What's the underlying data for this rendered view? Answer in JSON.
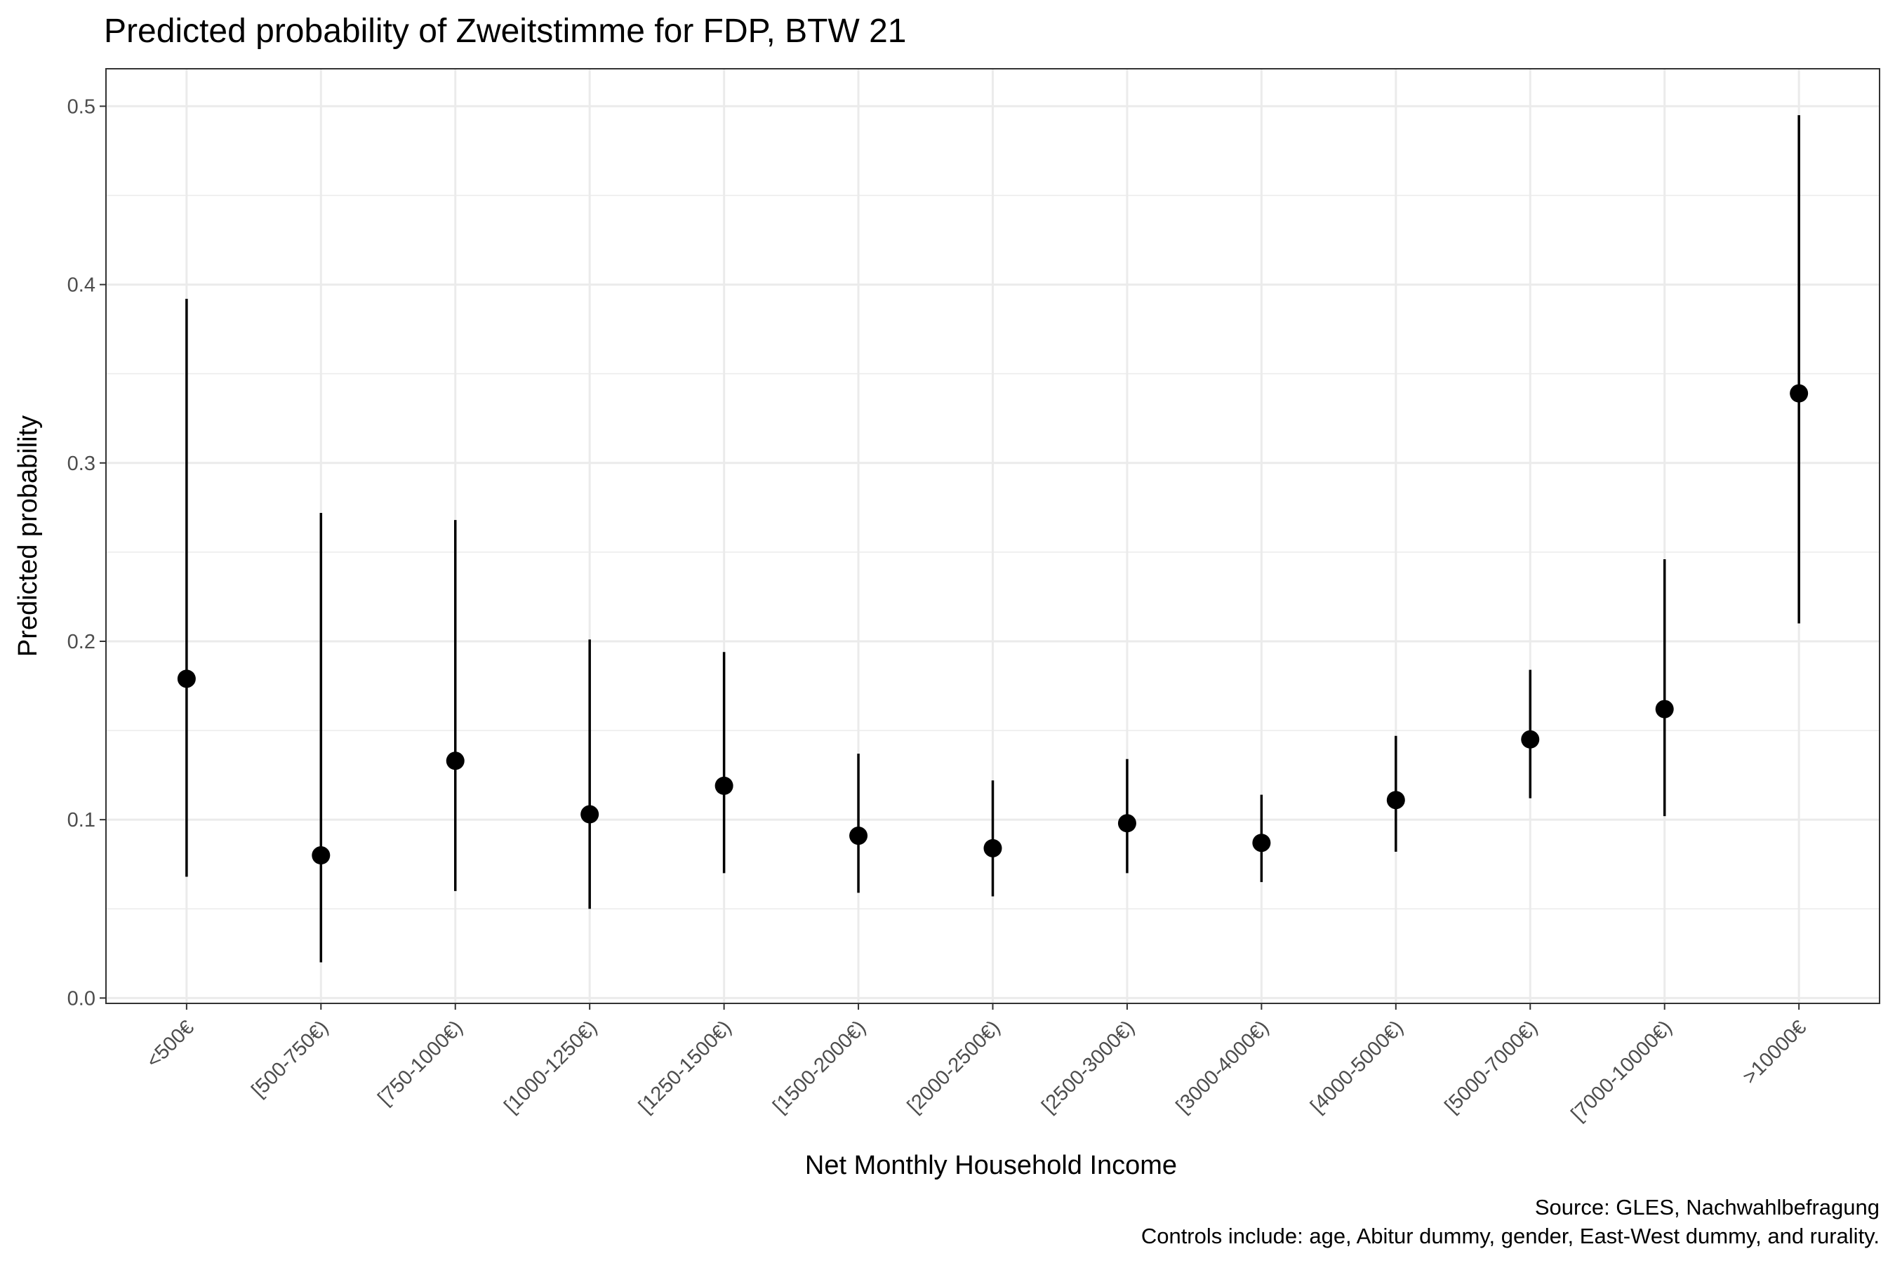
{
  "chart_data": {
    "type": "scatter",
    "title": "Predicted probability of Zweitstimme for FDP, BTW 21",
    "xlabel": "Net Monthly Household Income",
    "ylabel": "Predicted probability",
    "categories": [
      "<500€",
      "[500-750€)",
      "[750-1000€)",
      "[1000-1250€)",
      "[1250-1500€)",
      "[1500-2000€)",
      "[2000-2500€)",
      "[2500-3000€)",
      "[3000-4000€)",
      "[4000-5000€)",
      "[5000-7000€)",
      "[7000-10000€)",
      ">10000€"
    ],
    "values": [
      0.179,
      0.08,
      0.133,
      0.103,
      0.119,
      0.091,
      0.084,
      0.098,
      0.087,
      0.111,
      0.145,
      0.162,
      0.339
    ],
    "lower": [
      0.068,
      0.02,
      0.06,
      0.05,
      0.07,
      0.059,
      0.057,
      0.07,
      0.065,
      0.082,
      0.112,
      0.102,
      0.21
    ],
    "upper": [
      0.392,
      0.272,
      0.268,
      0.201,
      0.194,
      0.137,
      0.122,
      0.134,
      0.114,
      0.147,
      0.184,
      0.246,
      0.495
    ],
    "ylim": [
      -0.003,
      0.521
    ],
    "yticks": [
      0.0,
      0.1,
      0.2,
      0.3,
      0.4,
      0.5
    ],
    "ytick_labels": [
      "0.0",
      "0.1",
      "0.2",
      "0.3",
      "0.4",
      "0.5"
    ],
    "grid": true,
    "caption_lines": [
      "Source: GLES, Nachwahlbefragung",
      "Controls include: age, Abitur dummy, gender, East-West dummy, and rurality."
    ],
    "colors": {
      "points": "#000000",
      "grid": "#ebebeb",
      "panel_border": "#333333",
      "text": "#000000",
      "tick_text": "#4d4d4d"
    }
  }
}
